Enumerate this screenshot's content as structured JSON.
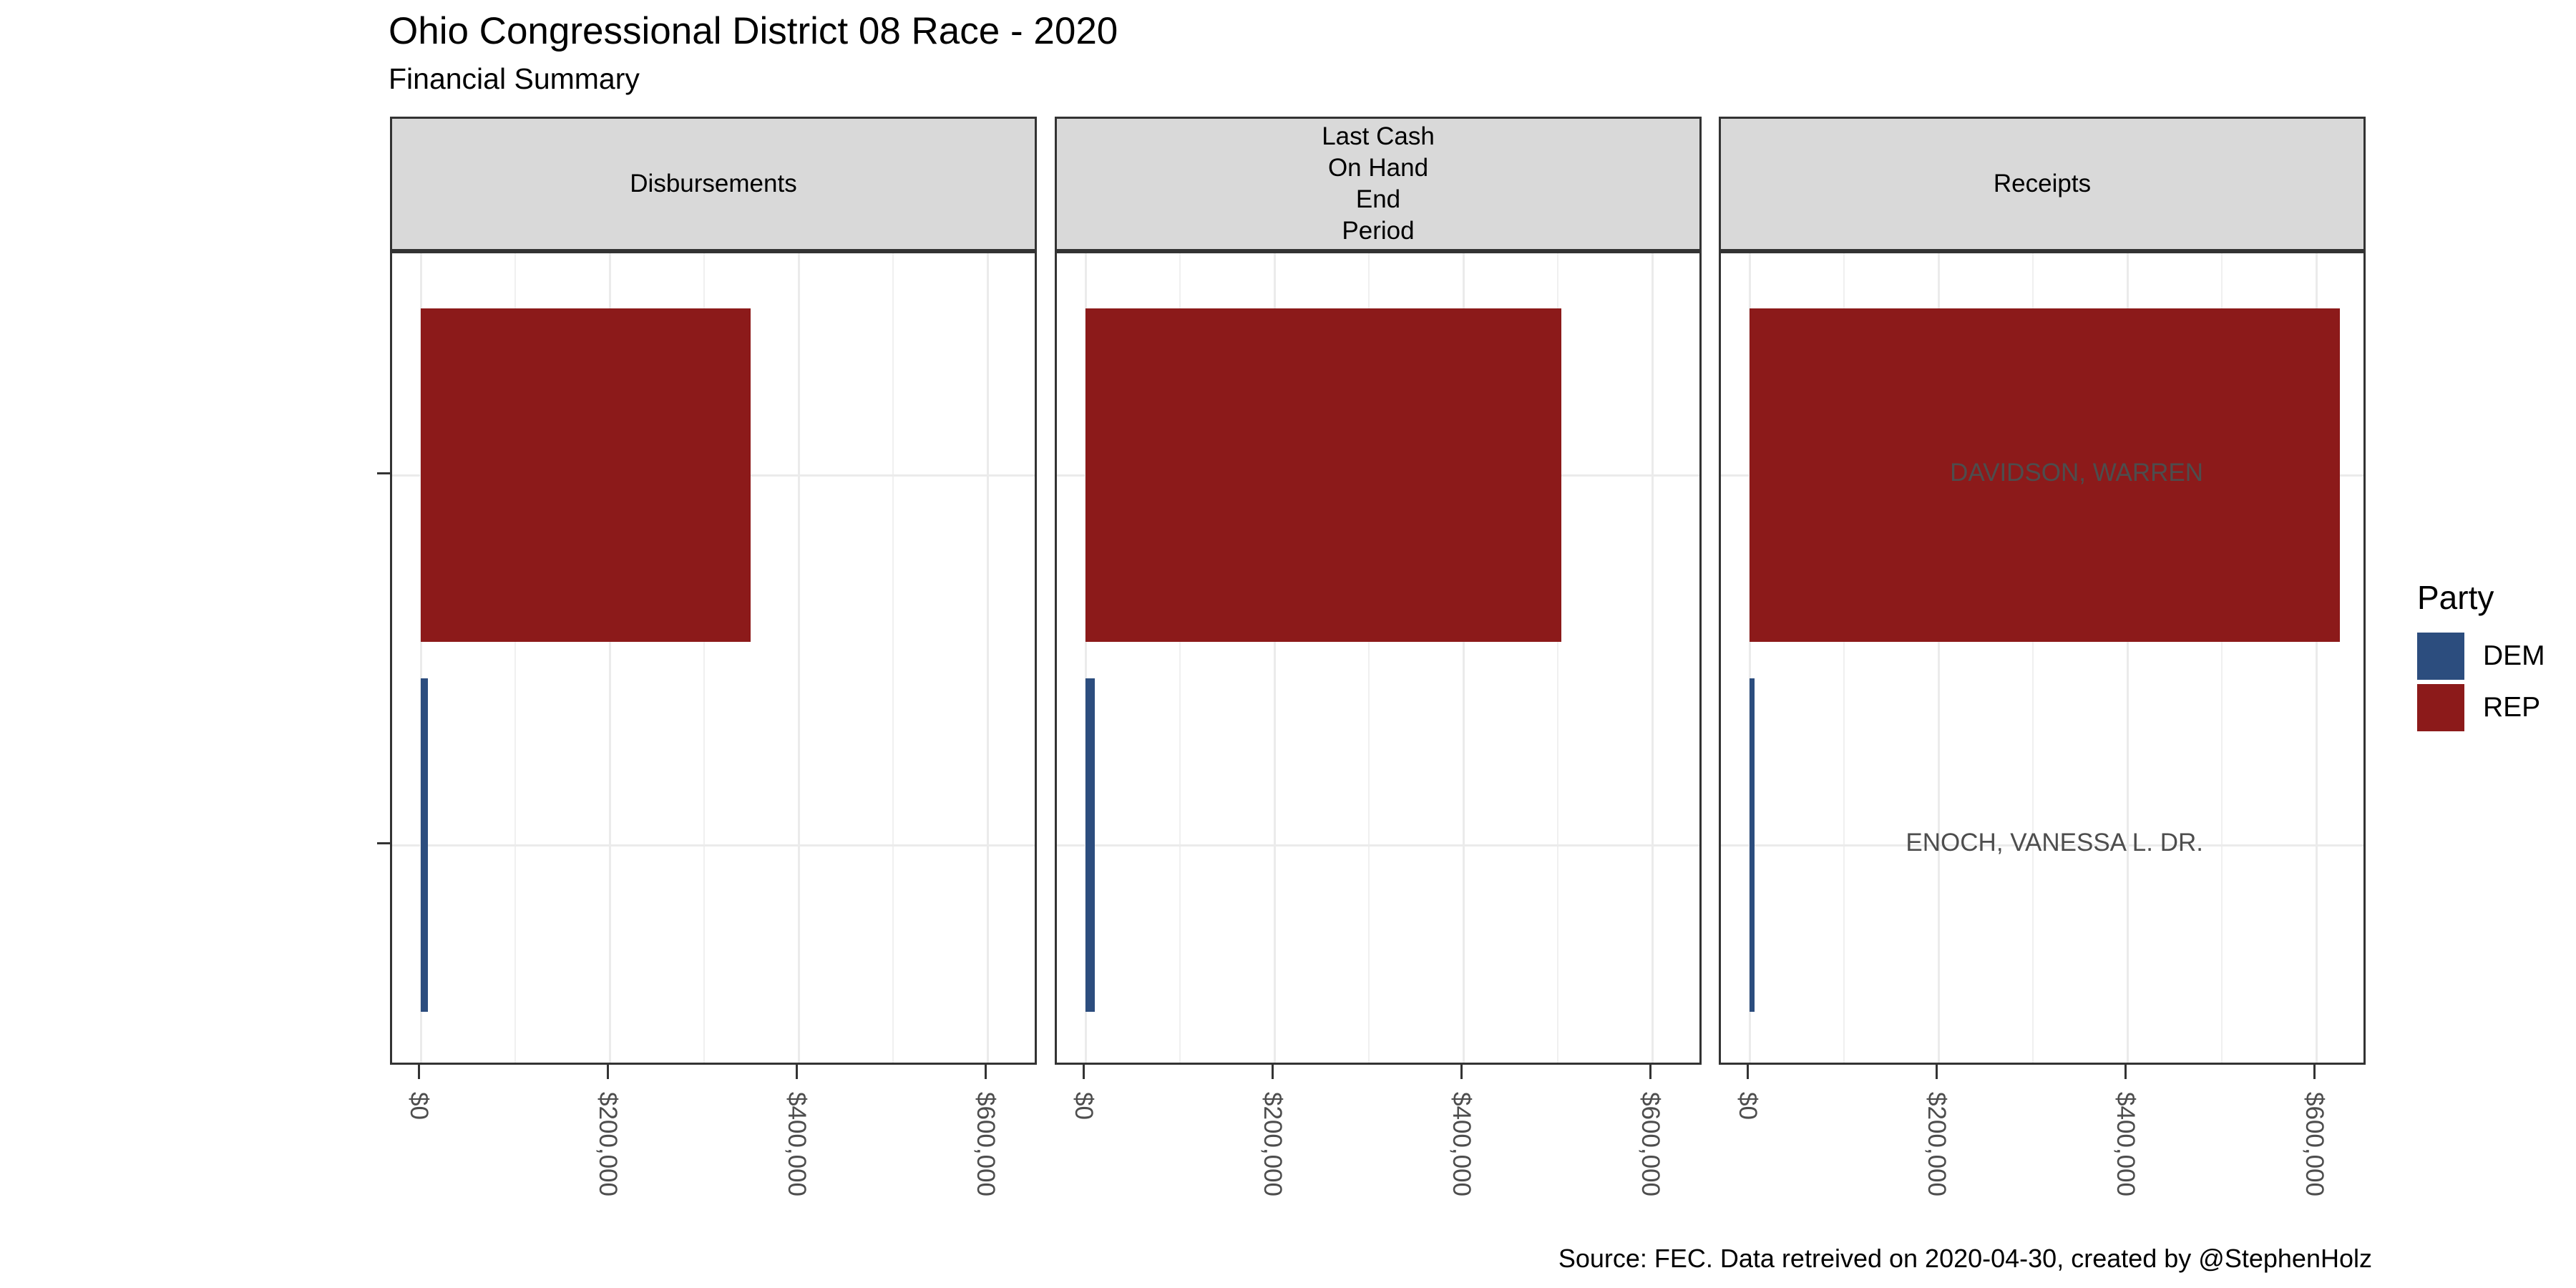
{
  "title": "Ohio Congressional District 08 Race - 2020",
  "subtitle": "Financial Summary",
  "caption": "Source: FEC. Data retreived on 2020-04-30, created by @StephenHolz",
  "legend": {
    "title": "Party",
    "items": [
      {
        "label": "DEM",
        "color": "#2C4D7E"
      },
      {
        "label": "REP",
        "color": "#8C1A1A"
      }
    ]
  },
  "chart_data": {
    "type": "bar",
    "orientation": "horizontal",
    "title": "Ohio Congressional District 08 Race - 2020",
    "subtitle": "Financial Summary",
    "caption": "Source: FEC. Data retreived on 2020-04-30, created by @StephenHolz",
    "facets": [
      {
        "name": "Disbursements",
        "label_lines": [
          "Disbursements"
        ]
      },
      {
        "name": "Last Cash On Hand End Period",
        "label_lines": [
          "Last Cash",
          "On Hand",
          "End",
          "Period"
        ]
      },
      {
        "name": "Receipts",
        "label_lines": [
          "Receipts"
        ]
      }
    ],
    "categories": [
      "DAVIDSON, WARREN",
      "ENOCH, VANESSA L. DR."
    ],
    "series": [
      {
        "name": "DAVIDSON, WARREN",
        "party": "REP",
        "values": [
          349000,
          504000,
          625000
        ]
      },
      {
        "name": "ENOCH, VANESSA L. DR.",
        "party": "DEM",
        "values": [
          7500,
          9500,
          5500
        ]
      }
    ],
    "x_axis": {
      "tick_values": [
        0,
        200000,
        400000,
        600000
      ],
      "tick_labels": [
        "$0",
        "$200,000",
        "$400,000",
        "$600,000"
      ],
      "minor_tick_values": [
        100000,
        300000,
        500000
      ],
      "range": [
        -30000,
        655000
      ],
      "format": "USD"
    },
    "legend_title": "Party",
    "legend_position": "right",
    "party_colors": {
      "DEM": "#2C4D7E",
      "REP": "#8C1A1A"
    },
    "grid": "vertical major+minor light gray, horizontal major at category centers",
    "panel_background": "#FFFFFF",
    "strip_background": "#D9D9D9"
  }
}
